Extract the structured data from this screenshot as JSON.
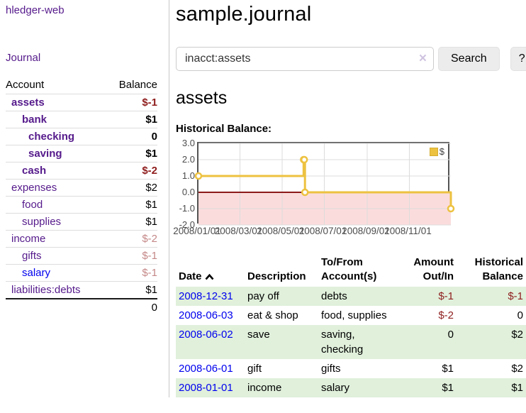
{
  "app": {
    "title": "hledger-web"
  },
  "nav": {
    "journal": "Journal"
  },
  "sidebar": {
    "header": {
      "account": "Account",
      "balance": "Balance"
    },
    "accounts": [
      {
        "name": "assets",
        "balance": "$-1"
      },
      {
        "name": "bank",
        "balance": "$1"
      },
      {
        "name": "checking",
        "balance": "0"
      },
      {
        "name": "saving",
        "balance": "$1"
      },
      {
        "name": "cash",
        "balance": "$-2"
      },
      {
        "name": "expenses",
        "balance": "$2"
      },
      {
        "name": "food",
        "balance": "$1"
      },
      {
        "name": "supplies",
        "balance": "$1"
      },
      {
        "name": "income",
        "balance": "$-2"
      },
      {
        "name": "gifts",
        "balance": "$-1"
      },
      {
        "name": "salary",
        "balance": "$-1"
      },
      {
        "name": "liabilities:debts",
        "balance": "$1"
      }
    ],
    "total": "0"
  },
  "header": {
    "title": "sample.journal"
  },
  "search": {
    "value": "inacct:assets",
    "clear": "×",
    "button": "Search",
    "help": "?"
  },
  "account_page": {
    "heading": "assets",
    "chart_title": "Historical Balance:"
  },
  "chart_data": {
    "type": "line",
    "title": "Historical Balance:",
    "step": true,
    "series": [
      {
        "name": "$",
        "color": "#edc240",
        "points": [
          [
            "2008-01-01",
            1
          ],
          [
            "2008-06-01",
            2
          ],
          [
            "2008-06-02",
            2
          ],
          [
            "2008-06-03",
            0
          ],
          [
            "2008-12-31",
            -1
          ]
        ]
      }
    ],
    "x_range": [
      "2008-01-01",
      "2008-12-31"
    ],
    "ylim": [
      -2,
      3
    ],
    "yticks": [
      3,
      2,
      1,
      0,
      -1,
      -2
    ],
    "ytick_labels": [
      "3.0",
      "2.0",
      "1.0",
      "0.0",
      "-1.0",
      "-2.0"
    ],
    "xticks": [
      "2008-01-01",
      "2008-03-01",
      "2008-05-01",
      "2008-07-01",
      "2008-09-01",
      "2008-11-01"
    ],
    "xtick_labels": [
      "2008/01/01",
      "2008/03/01",
      "2008/05/01",
      "2008/07/01",
      "2008/09/01",
      "2008/11/01"
    ],
    "legend": {
      "label": "$",
      "position": "top-right"
    },
    "grid": true,
    "grid_color": "#dcdcdc",
    "negative_region_color": "#fbdcdc",
    "zero_line_color": "#8b1b1b"
  },
  "register": {
    "columns": {
      "date": "Date",
      "description": "Description",
      "accounts": "To/From Account(s)",
      "amount": "Amount Out/In",
      "balance": "Historical Balance"
    },
    "rows": [
      {
        "date": "2008-12-31",
        "description": "pay off",
        "accounts": "debts",
        "amount": "$-1",
        "balance": "$-1"
      },
      {
        "date": "2008-06-03",
        "description": "eat & shop",
        "accounts": "food, supplies",
        "amount": "$-2",
        "balance": "0"
      },
      {
        "date": "2008-06-02",
        "description": "save",
        "accounts": "saving, checking",
        "amount": "0",
        "balance": "$2"
      },
      {
        "date": "2008-06-01",
        "description": "gift",
        "accounts": "gifts",
        "amount": "$1",
        "balance": "$2"
      },
      {
        "date": "2008-01-01",
        "description": "income",
        "accounts": "salary",
        "amount": "$1",
        "balance": "$1"
      }
    ]
  }
}
